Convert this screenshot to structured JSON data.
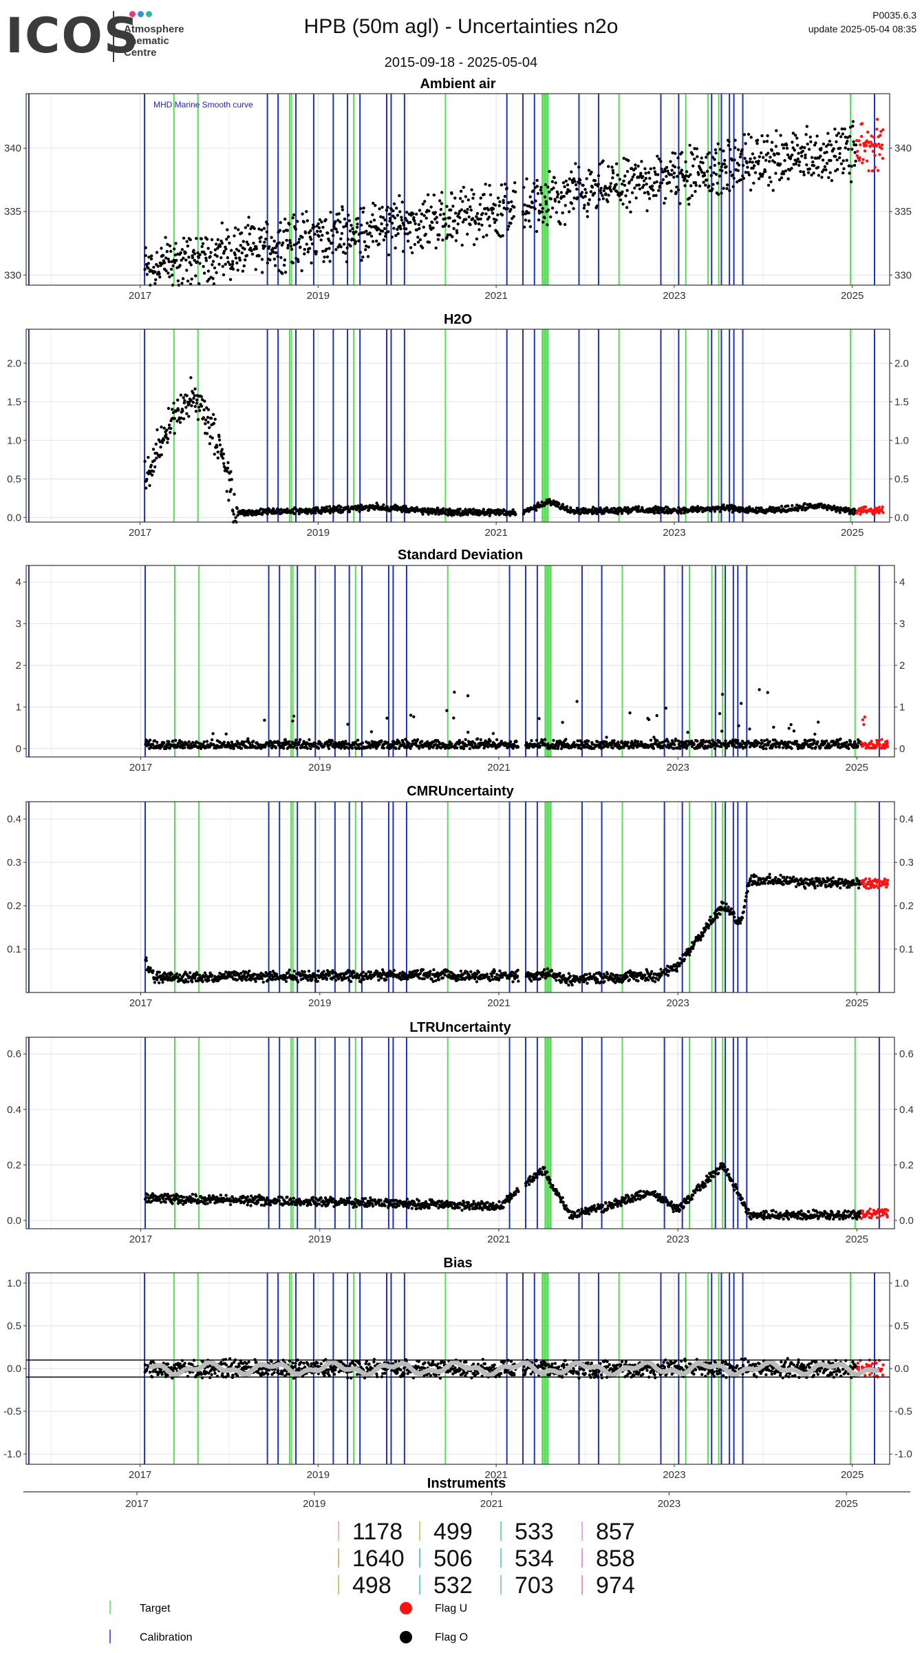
{
  "header": {
    "logo_word": "ICOS",
    "logo_sub": "Atmosphere\nThematic\nCentre",
    "title": "HPB  (50m agl) - Uncertainties n2o",
    "date_range": "2015-09-18 - 2025-05-04",
    "version": "P0035.6.3",
    "update": "update  2025-05-04 08:35"
  },
  "colors": {
    "target": "#55dd55",
    "calibration": "#1f2fbf",
    "flag_u": "#ff1111",
    "flag_o": "#000000",
    "bias_smooth": "#bbbbbb",
    "logo_dots": [
      "#e83a7d",
      "#3c8fd6",
      "#2eb7a6"
    ]
  },
  "chart_data": [
    {
      "type": "scatter",
      "title": "Ambient air",
      "annotation": "MHD Marine Smooth curve",
      "xlim": [
        2015.72,
        2025.42
      ],
      "ylim": [
        329.2,
        344.3
      ],
      "yticks": [
        330,
        335,
        340
      ],
      "xticks": [
        2017,
        2019,
        2021,
        2023,
        2025
      ],
      "trend": [
        [
          2017.05,
          330.6
        ],
        [
          2018,
          331.8
        ],
        [
          2019,
          333.0
        ],
        [
          2020,
          334.0
        ],
        [
          2021,
          335.1
        ],
        [
          2021.5,
          335.6
        ],
        [
          2022,
          336.6
        ],
        [
          2023,
          337.8
        ],
        [
          2024,
          338.9
        ],
        [
          2025,
          339.8
        ],
        [
          2025.35,
          340.3
        ]
      ],
      "noise": [
        1.6,
        2.6
      ],
      "flag_u_from": 2025.05
    },
    {
      "type": "scatter",
      "title": "H2O",
      "xlim": [
        2015.72,
        2025.42
      ],
      "ylim": [
        -0.06,
        2.44
      ],
      "yticks": [
        0.0,
        0.5,
        1.0,
        1.5,
        2.0
      ],
      "ytick_labels": [
        "0.0",
        "0.5",
        "1.0",
        "1.5",
        "2.0"
      ],
      "xticks": [
        2017,
        2019,
        2021,
        2023,
        2025
      ],
      "trend": [
        [
          2017.05,
          0.45
        ],
        [
          2017.3,
          1.2
        ],
        [
          2017.6,
          1.6
        ],
        [
          2017.85,
          1.0
        ],
        [
          2018.0,
          0.5
        ],
        [
          2018.05,
          0.06
        ],
        [
          2019,
          0.09
        ],
        [
          2019.7,
          0.14
        ],
        [
          2020.2,
          0.08
        ],
        [
          2021,
          0.06
        ],
        [
          2021.3,
          0.07
        ],
        [
          2021.6,
          0.2
        ],
        [
          2021.9,
          0.08
        ],
        [
          2022.5,
          0.1
        ],
        [
          2023,
          0.09
        ],
        [
          2023.6,
          0.12
        ],
        [
          2024,
          0.08
        ],
        [
          2024.6,
          0.15
        ],
        [
          2025,
          0.08
        ],
        [
          2025.35,
          0.1
        ]
      ],
      "noise": [
        0.3,
        0.05
      ],
      "flag_u_from": 2025.05
    },
    {
      "type": "scatter",
      "title": "Standard Deviation",
      "xlim": [
        2015.72,
        2025.42
      ],
      "ylim": [
        -0.2,
        4.4
      ],
      "yticks": [
        0,
        1,
        2,
        3,
        4
      ],
      "xticks": [
        2017,
        2019,
        2021,
        2023,
        2025
      ],
      "trend": [
        [
          2017.05,
          0.08
        ],
        [
          2025.35,
          0.1
        ]
      ],
      "noise": [
        0.15,
        0.15
      ],
      "flag_u_from": 2025.05
    },
    {
      "type": "scatter",
      "title": "CMRUncertainty",
      "xlim": [
        2015.72,
        2025.42
      ],
      "ylim": [
        0.0,
        0.44
      ],
      "yticks": [
        0.1,
        0.2,
        0.3,
        0.4
      ],
      "ytick_labels": [
        "0.1",
        "0.2",
        "0.3",
        "0.4"
      ],
      "xticks": [
        2017,
        2019,
        2021,
        2023,
        2025
      ],
      "trend": [
        [
          2017.05,
          0.07
        ],
        [
          2017.15,
          0.035
        ],
        [
          2020,
          0.04
        ],
        [
          2021.2,
          0.038
        ],
        [
          2021.6,
          0.045
        ],
        [
          2021.7,
          0.03
        ],
        [
          2022.2,
          0.035
        ],
        [
          2022.8,
          0.04
        ],
        [
          2023,
          0.06
        ],
        [
          2023.2,
          0.12
        ],
        [
          2023.5,
          0.2
        ],
        [
          2023.7,
          0.16
        ],
        [
          2023.8,
          0.26
        ],
        [
          2025,
          0.25
        ],
        [
          2025.35,
          0.25
        ]
      ],
      "noise": [
        0.01,
        0.015
      ],
      "flag_u_from": 2025.05
    },
    {
      "type": "scatter",
      "title": "LTRUncertainty",
      "xlim": [
        2015.72,
        2025.42
      ],
      "ylim": [
        -0.03,
        0.66
      ],
      "yticks": [
        0.0,
        0.2,
        0.4,
        0.6
      ],
      "ytick_labels": [
        "0.0",
        "0.2",
        "0.4",
        "0.6"
      ],
      "xticks": [
        2017,
        2019,
        2021,
        2023,
        2025
      ],
      "trend": [
        [
          2017.05,
          0.08
        ],
        [
          2020,
          0.06
        ],
        [
          2021,
          0.05
        ],
        [
          2021.5,
          0.18
        ],
        [
          2021.8,
          0.02
        ],
        [
          2022.2,
          0.05
        ],
        [
          2022.7,
          0.1
        ],
        [
          2023,
          0.04
        ],
        [
          2023.5,
          0.2
        ],
        [
          2023.8,
          0.02
        ],
        [
          2025,
          0.02
        ],
        [
          2025.35,
          0.03
        ]
      ],
      "noise": [
        0.05,
        0.02
      ],
      "flag_u_from": 2025.05
    },
    {
      "type": "scatter",
      "title": "Bias",
      "xlim": [
        2015.72,
        2025.42
      ],
      "ylim": [
        -1.12,
        1.12
      ],
      "yticks": [
        -1.0,
        -0.5,
        0.0,
        0.5,
        1.0
      ],
      "ytick_labels": [
        "-1.0",
        "-0.5",
        "0.0",
        "0.5",
        "1.0"
      ],
      "xticks": [
        2017,
        2019,
        2021,
        2023,
        2025
      ],
      "hlines": [
        0.1,
        -0.1
      ],
      "trend": [
        [
          2017.05,
          0.0
        ],
        [
          2025.35,
          0.0
        ]
      ],
      "noise": [
        0.12,
        0.12
      ],
      "flag_u_from": 2025.05
    }
  ],
  "events": {
    "calibration": [
      2015.75,
      2017.05,
      2018.43,
      2018.55,
      2018.75,
      2018.95,
      2019.17,
      2019.33,
      2019.47,
      2019.77,
      2019.82,
      2019.97,
      2021.12,
      2021.3,
      2021.43,
      2021.93,
      2022.15,
      2022.85,
      2023.05,
      2023.42,
      2023.53,
      2023.62,
      2023.67,
      2023.77,
      2025.25
    ],
    "target": [
      2017.38,
      2017.65,
      2018.68,
      2018.7,
      2019.4,
      2020.43,
      2021.52,
      2021.55,
      2021.58,
      2022.38,
      2023.13,
      2023.38,
      2023.5,
      2024.98
    ]
  },
  "instruments": {
    "title": "Instruments",
    "xticks": [
      2017,
      2019,
      2021,
      2023,
      2025
    ],
    "items": [
      {
        "label": "1178",
        "color": "#f0a0a0"
      },
      {
        "label": "1640",
        "color": "#d4a04a"
      },
      {
        "label": "498",
        "color": "#c8b040"
      },
      {
        "label": "499",
        "color": "#a6c84a"
      },
      {
        "label": "506",
        "color": "#30c090"
      },
      {
        "label": "532",
        "color": "#30c8b8"
      },
      {
        "label": "533",
        "color": "#40c8d0"
      },
      {
        "label": "534",
        "color": "#40c0e0"
      },
      {
        "label": "703",
        "color": "#70b0e8"
      },
      {
        "label": "857",
        "color": "#d090e8"
      },
      {
        "label": "858",
        "color": "#e070d8"
      },
      {
        "label": "974",
        "color": "#f070b0"
      }
    ]
  },
  "legend": {
    "target": "Target",
    "calibration": "Calibration",
    "flag_u": "Flag U",
    "flag_o": "Flag O"
  }
}
